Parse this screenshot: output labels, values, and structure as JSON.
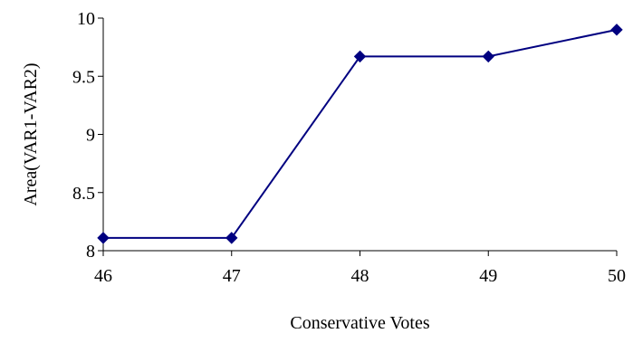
{
  "chart_data": {
    "type": "line",
    "title": "",
    "xlabel": "Conservative Votes",
    "ylabel": "Area(VAR1-VAR2)",
    "x": [
      46,
      47,
      48,
      49,
      50
    ],
    "xlim": [
      46,
      50
    ],
    "xticks": [
      "46",
      "47",
      "48",
      "49",
      "50"
    ],
    "ylim": [
      8,
      10
    ],
    "yticks": [
      "8",
      "8.5",
      "9",
      "9.5",
      "10"
    ],
    "series": [
      {
        "values": [
          8.11,
          8.11,
          9.67,
          9.67,
          9.9
        ]
      }
    ],
    "grid": false,
    "legend": "none",
    "line_color": "#000080",
    "marker": "diamond",
    "axis_color": "#000000"
  }
}
